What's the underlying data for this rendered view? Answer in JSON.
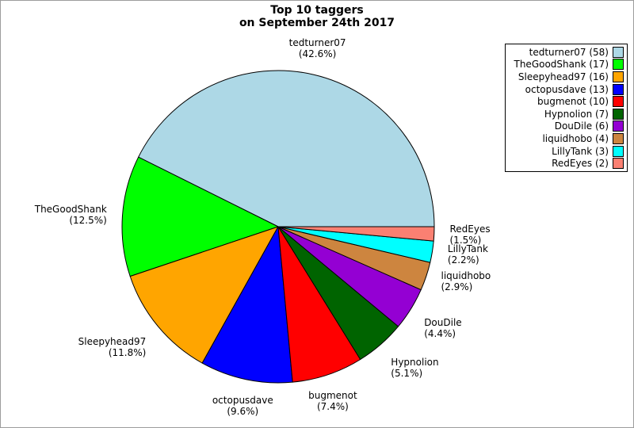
{
  "figure": {
    "background": "#FFFFFF",
    "border_color": "#9C9C9C"
  },
  "title": {
    "line1": "Top 10 taggers",
    "line2": "on September 24th 2017"
  },
  "chart_data": {
    "type": "pie",
    "title": "Top 10 taggers on September 24th 2017",
    "categories": [
      "tedturner07",
      "TheGoodShank",
      "Sleepyhead97",
      "octopusdave",
      "bugmenot",
      "Hypnolion",
      "DouDile",
      "liquidhobo",
      "LillyTank",
      "RedEyes"
    ],
    "values": [
      58,
      17,
      16,
      13,
      10,
      7,
      6,
      4,
      3,
      2
    ],
    "total": 136,
    "percent_labels": [
      "(42.6%)",
      "(12.5%)",
      "(11.8%)",
      "(9.6%)",
      "(7.4%)",
      "(5.1%)",
      "(4.4%)",
      "(2.9%)",
      "(2.2%)",
      "(1.5%)"
    ],
    "colors": [
      "#ADD8E6",
      "#00FF00",
      "#FFA500",
      "#0000FF",
      "#FF0000",
      "#006400",
      "#9400D3",
      "#CD853F",
      "#00FFFF",
      "#FA8072"
    ],
    "stroke_color": "#000000",
    "start_angle_deg": 0,
    "direction": "counterclockwise",
    "legend_position": "top-right"
  },
  "legend": {
    "entries": [
      "tedturner07 (58)",
      "TheGoodShank (17)",
      "Sleepyhead97 (16)",
      "octopusdave (13)",
      "bugmenot (10)",
      "Hypnolion (7)",
      "DouDile (6)",
      "liquidhobo (4)",
      "LillyTank (3)",
      "RedEyes (2)"
    ]
  }
}
